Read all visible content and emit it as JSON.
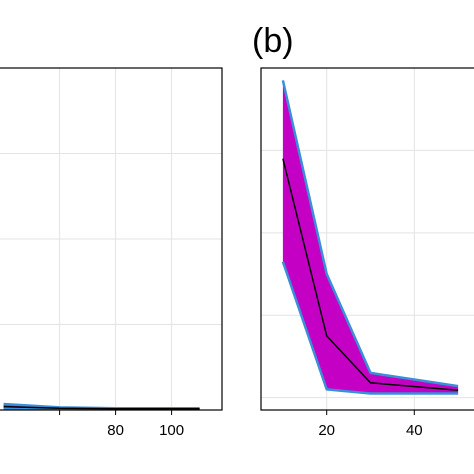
{
  "chart_data": [
    {
      "type": "area",
      "panel_label": "",
      "grid": true,
      "xlim": [
        38,
        118
      ],
      "x_ticks": [
        60,
        80,
        100
      ],
      "x_tick_labels": [
        "",
        "80",
        "100"
      ],
      "series": [
        {
          "role": "envelope",
          "x": [
            40,
            60,
            80,
            110
          ],
          "upper": [
            0.07,
            0.03,
            0.02,
            0.02
          ],
          "lower": [
            0.02,
            0.01,
            0.01,
            0.01
          ]
        },
        {
          "role": "upper-line",
          "x": [
            40,
            60,
            80,
            110
          ],
          "values": [
            0.07,
            0.03,
            0.02,
            0.02
          ]
        },
        {
          "role": "mean-line",
          "x": [
            40,
            60,
            80,
            110
          ],
          "values": [
            0.04,
            0.02,
            0.015,
            0.015
          ]
        },
        {
          "role": "lower-line",
          "x": [
            40,
            60,
            80,
            110
          ],
          "values": [
            0.02,
            0.01,
            0.01,
            0.01
          ]
        }
      ]
    },
    {
      "type": "area",
      "panel_label": "(b)",
      "grid": true,
      "xlim": [
        5,
        55
      ],
      "x_ticks": [
        20,
        40
      ],
      "x_tick_labels": [
        "20",
        "40"
      ],
      "series": [
        {
          "role": "envelope",
          "x": [
            10,
            20,
            30,
            50
          ],
          "upper": [
            3.85,
            1.5,
            0.3,
            0.14
          ],
          "lower": [
            1.65,
            0.1,
            0.05,
            0.05
          ]
        },
        {
          "role": "upper-line",
          "x": [
            10,
            20,
            30,
            50
          ],
          "values": [
            3.85,
            1.5,
            0.3,
            0.14
          ]
        },
        {
          "role": "mean-line",
          "x": [
            10,
            20,
            30,
            50
          ],
          "values": [
            2.9,
            0.75,
            0.18,
            0.09
          ]
        },
        {
          "role": "lower-line",
          "x": [
            10,
            20,
            30,
            50
          ],
          "values": [
            1.65,
            0.1,
            0.05,
            0.05
          ]
        }
      ]
    }
  ],
  "colors": {
    "envelope_fill": "#c400c4",
    "envelope_edge": "#3a8fd8",
    "mean_line": "#000000",
    "grid": "#e3e3e3",
    "frame": "#000000",
    "background": "#ffffff"
  }
}
